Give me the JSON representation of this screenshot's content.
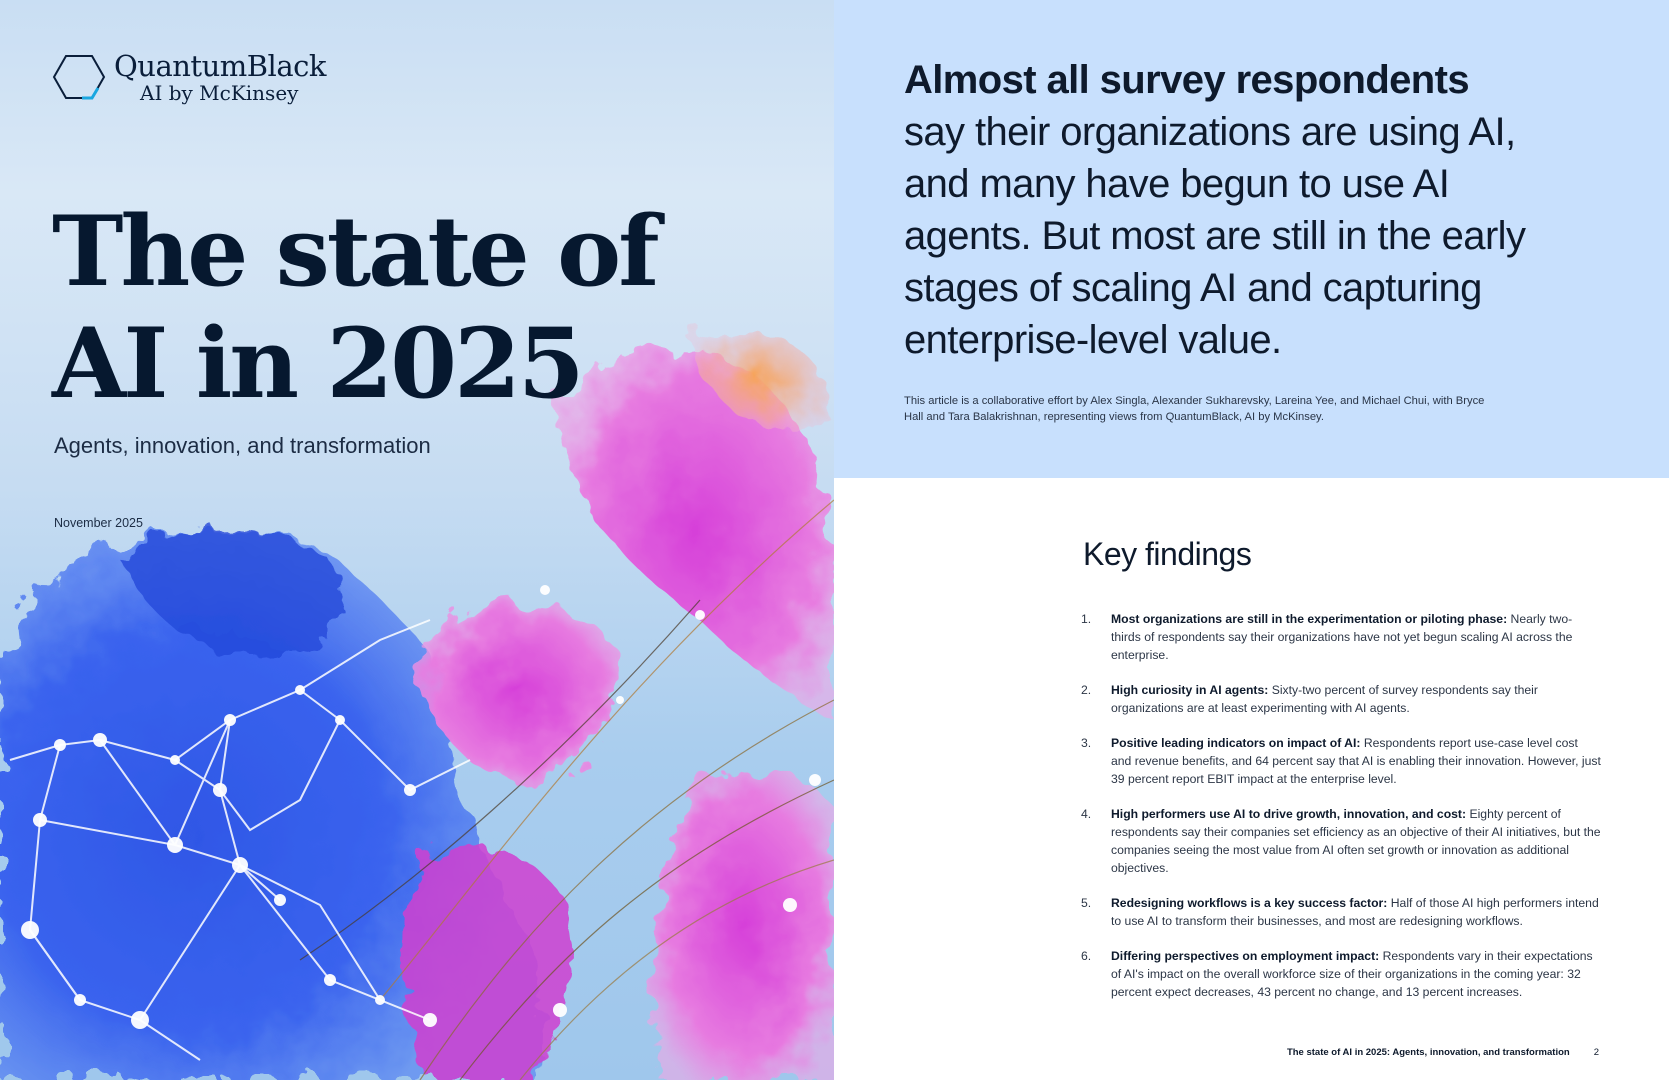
{
  "cover": {
    "logo": {
      "line1": "QuantumBlack",
      "line2": "AI by McKinsey",
      "icon": "hexagon-logo-icon"
    },
    "title_line1": "The state of",
    "title_line2": "AI in 2025",
    "subtitle": "Agents, innovation, and transformation",
    "date": "November 2025"
  },
  "intro": {
    "headline_bold": "Almost all survey respondents",
    "headline_rest": "say their organizations are using AI, and many have begun to use AI agents. But most are still in the early stages of scaling AI and capturing enterprise-level value.",
    "credit": "This article is a collaborative effort by Alex Singla, Alexander Sukharevsky, Lareina Yee, and Michael Chui, with Bryce Hall and Tara Balakrishnan, representing views from QuantumBlack, AI by McKinsey."
  },
  "key_findings": {
    "title": "Key findings",
    "items": [
      {
        "num": "1.",
        "lead": "Most organizations are still in the experimentation or piloting phase:",
        "text": "Nearly two-thirds of respondents say their organizations have not yet begun scaling AI across the enterprise."
      },
      {
        "num": "2.",
        "lead": "High curiosity in AI agents:",
        "text": "Sixty-two percent of survey respondents say their organizations are at least experimenting with AI agents."
      },
      {
        "num": "3.",
        "lead": "Positive leading indicators on impact of AI:",
        "text": "Respondents report use-case level cost and revenue benefits, and 64 percent say that AI is enabling their innovation. However, just 39 percent report EBIT impact at the enterprise level."
      },
      {
        "num": "4.",
        "lead": "High performers use AI to drive growth, innovation, and cost:",
        "text": "Eighty percent of respondents say their companies set efficiency as an objective of their AI initiatives, but the companies seeing the most value from AI often set growth or innovation as additional objectives."
      },
      {
        "num": "5.",
        "lead": "Redesigning workflows is a key success factor:",
        "text": "Half of those AI high performers intend to use AI to transform their businesses, and most are redesigning workflows."
      },
      {
        "num": "6.",
        "lead": "Differing perspectives on employment impact:",
        "text": "Respondents vary in their expectations of AI's impact on the overall workforce size of their organizations in the coming year: 32 percent expect decreases, 43 percent no change, and 13 percent increases."
      }
    ]
  },
  "footer": {
    "running_title": "The state of AI in 2025: Agents, innovation, and transformation",
    "page_number": "2"
  },
  "colors": {
    "intro_panel": "#c8e0fd",
    "title_navy": "#06182f",
    "logo_accent": "#1aa7e0"
  }
}
